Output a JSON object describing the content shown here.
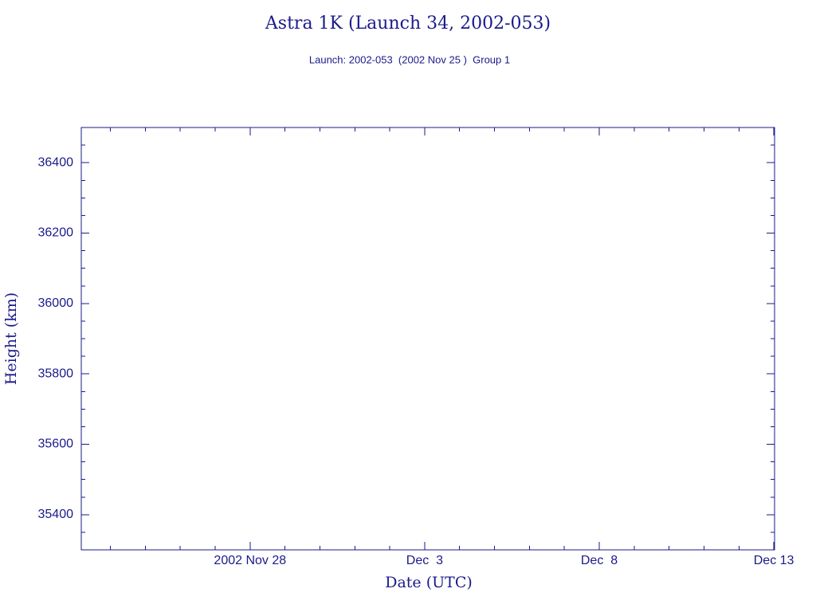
{
  "chart_data": {
    "type": "line",
    "title": "Astra 1K (Launch 34, 2002-053)",
    "subtitle": "Launch: 2002-053  (2002 Nov 25 )  Group 1",
    "x_label": "Date (UTC)",
    "y_label": "Height (km)",
    "color": "#1a1a8c",
    "xlim": [
      "2002-11-23T04:00Z",
      "2002-12-13T00:30Z"
    ],
    "xticks": [
      {
        "value": "2002-11-28T00:00Z",
        "label": "2002 Nov 28"
      },
      {
        "value": "2002-12-03T00:00Z",
        "label": "Dec  3"
      },
      {
        "value": "2002-12-08T00:00Z",
        "label": "Dec  8"
      },
      {
        "value": "2002-12-13T00:00Z",
        "label": "Dec 13"
      }
    ],
    "x_minor_step_days": 1,
    "ylim": [
      35300,
      36500
    ],
    "yticks": [
      35400,
      35600,
      35800,
      36000,
      36200,
      36400
    ],
    "y_minor_step": 50
  }
}
